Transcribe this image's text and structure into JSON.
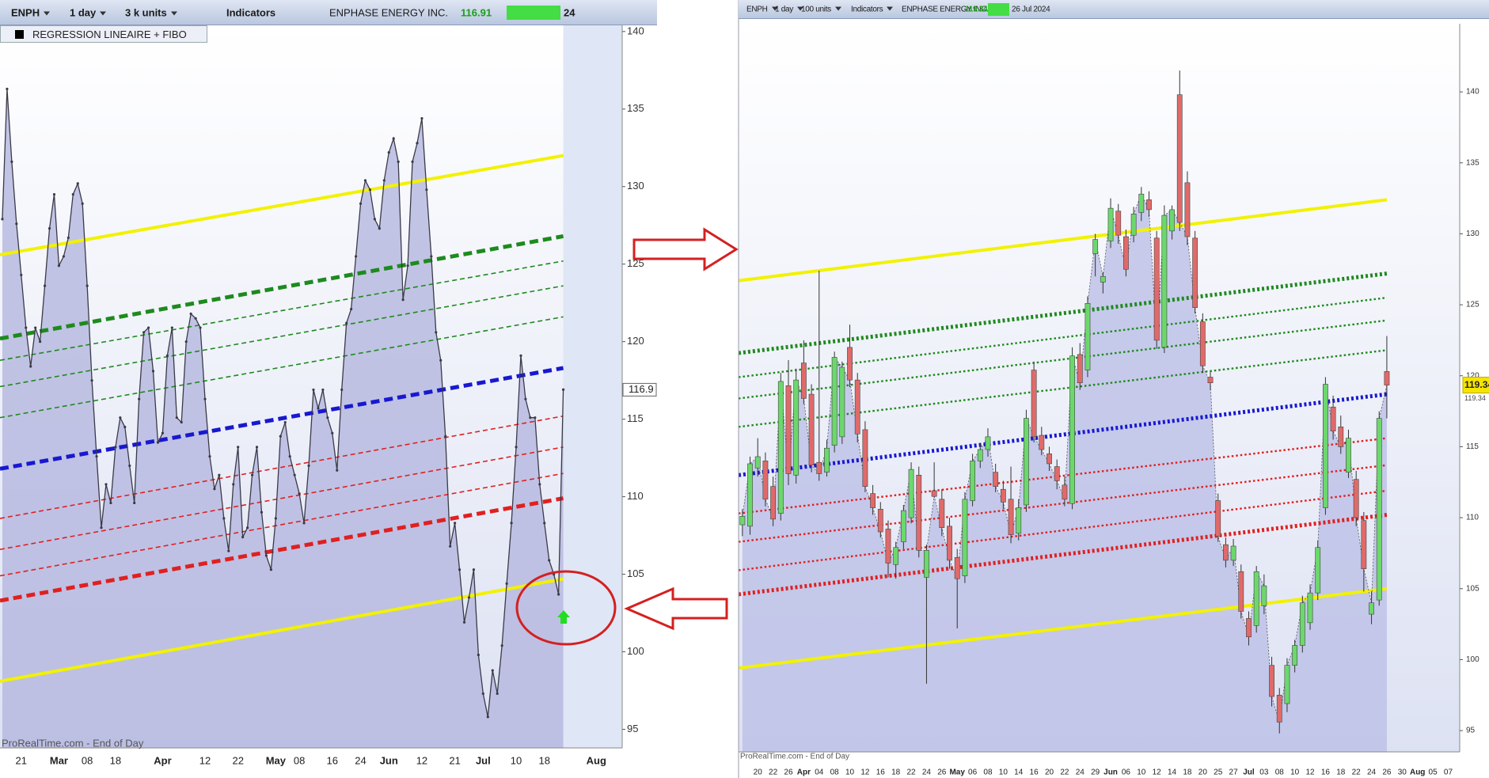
{
  "toolbars": [
    {
      "symbol": "ENPH",
      "period": "1 day",
      "units": "3 k units",
      "indicators": "Indicators",
      "name": "ENPHASE ENERGY INC.",
      "price": "116.91",
      "date": "24"
    },
    {
      "symbol": "ENPH",
      "period": "1 day",
      "units": "100 units",
      "indicators": "Indicators",
      "name": "ENPHASE ENERGY INC.",
      "price": "119.34",
      "date": "26 Jul 2024"
    }
  ],
  "indicator": "REGRESSION LINEAIRE + FIBO",
  "chart_data": [
    {
      "type": "line",
      "watermark": "ProRealTime.com - End of Day",
      "color": "#3a3a48",
      "area_color": "#b4b6df",
      "ylim": [
        93.8,
        140.4
      ],
      "yticks": [
        95,
        100,
        105,
        110,
        115,
        120,
        125,
        130,
        135,
        140
      ],
      "price_marker": 116.9,
      "categories": [
        null,
        null,
        null,
        null,
        "21",
        null,
        null,
        null,
        null,
        null,
        null,
        null,
        "Mar",
        null,
        null,
        null,
        null,
        null,
        "08",
        null,
        null,
        null,
        null,
        null,
        "18",
        null,
        null,
        null,
        null,
        null,
        null,
        null,
        null,
        null,
        "Apr",
        null,
        null,
        null,
        null,
        null,
        null,
        null,
        null,
        "12",
        null,
        null,
        null,
        null,
        null,
        null,
        "22",
        null,
        null,
        null,
        null,
        null,
        null,
        null,
        "May",
        null,
        null,
        null,
        null,
        "08",
        null,
        null,
        null,
        null,
        null,
        null,
        "16",
        null,
        null,
        null,
        null,
        null,
        "24",
        null,
        null,
        null,
        null,
        null,
        "Jun",
        null,
        null,
        null,
        null,
        null,
        null,
        "12",
        null,
        null,
        null,
        null,
        null,
        null,
        "21",
        null,
        null,
        null,
        null,
        null,
        "Jul",
        null,
        null,
        null,
        null,
        null,
        null,
        "10",
        null,
        null,
        null,
        null,
        null,
        "18",
        null,
        null,
        null,
        null,
        null,
        null,
        null,
        null,
        null,
        null,
        "Aug",
        null,
        null,
        null,
        null,
        null
      ],
      "values": [
        127.9,
        136.3,
        131.6,
        127.6,
        124.3,
        120.9,
        118.4,
        120.9,
        120,
        123.6,
        127.3,
        129.5,
        124.9,
        125.5,
        126.7,
        129.5,
        130.2,
        128.9,
        123.6,
        117.5,
        112.6,
        108,
        110.8,
        109.6,
        113.2,
        115.1,
        114.5,
        112,
        109.6,
        116.3,
        120.6,
        120.9,
        118.1,
        113.5,
        114.1,
        119.1,
        120.9,
        115.1,
        114.8,
        120,
        121.8,
        121.5,
        120.9,
        116.3,
        112.6,
        110.5,
        111.4,
        108.6,
        106.5,
        110.8,
        113.2,
        107.4,
        108,
        111.4,
        113.2,
        109,
        106.2,
        105.3,
        108.6,
        113.9,
        114.8,
        112.6,
        111.4,
        110.2,
        108.3,
        112,
        116.9,
        115.7,
        116.9,
        115.1,
        114.1,
        111.7,
        116.9,
        121.2,
        122.1,
        125.5,
        128.9,
        130.4,
        129.8,
        127.9,
        127.3,
        130.4,
        132.2,
        133.1,
        131.6,
        122.7,
        124.9,
        131.6,
        132.8,
        134.4,
        129.8,
        125.5,
        120.6,
        118.8,
        113.9,
        106.8,
        108.3,
        105.3,
        101.9,
        103.5,
        105.3,
        99.8,
        97.3,
        95.8,
        98.8,
        97.3,
        100.4,
        104.4,
        108.3,
        113.2,
        119.1,
        116.3,
        115.1,
        115.1,
        110.8,
        108.3,
        105.9,
        105,
        103.7,
        116.91,
        null,
        null,
        null,
        null,
        null,
        null,
        null,
        null,
        null,
        null,
        null,
        null
      ],
      "overlays": [
        {
          "color": "#f2f200",
          "style": "solid",
          "values": [
            125.6,
            132.0
          ]
        },
        {
          "color": "#1e8a1e",
          "style": "dashed-bold",
          "values": [
            120.2,
            126.8
          ]
        },
        {
          "color": "#1e8a1e",
          "style": "dashed",
          "values": [
            118.8,
            125.2
          ]
        },
        {
          "color": "#1e8a1e",
          "style": "dashed",
          "values": [
            117.1,
            123.6
          ]
        },
        {
          "color": "#1e8a1e",
          "style": "dashed",
          "values": [
            115.1,
            121.6
          ]
        },
        {
          "color": "#1818d0",
          "style": "dashed-bold",
          "values": [
            111.8,
            118.3
          ]
        },
        {
          "color": "#e02020",
          "style": "dashed",
          "values": [
            108.6,
            115.2
          ]
        },
        {
          "color": "#e02020",
          "style": "dashed",
          "values": [
            106.6,
            113.2
          ]
        },
        {
          "color": "#e02020",
          "style": "dashed",
          "values": [
            104.9,
            111.5
          ]
        },
        {
          "color": "#e02020",
          "style": "dashed-bold",
          "values": [
            103.3,
            109.9
          ]
        },
        {
          "color": "#f2f200",
          "style": "solid",
          "values": [
            98.1,
            104.7
          ]
        }
      ]
    },
    {
      "type": "candlestick",
      "watermark": "ProRealTime.com - End of Day",
      "up_color": "#6cd86c",
      "down_color": "#e06a6a",
      "area_color": "#bcbfe6",
      "ylim": [
        93.5,
        144.8
      ],
      "yticks": [
        95,
        100,
        105,
        110,
        115,
        120,
        125,
        130,
        135,
        140
      ],
      "price_marker": 119.34,
      "categories": [
        null,
        null,
        "20",
        null,
        "22",
        null,
        "26",
        null,
        "Apr",
        null,
        "04",
        null,
        "08",
        null,
        "10",
        null,
        "12",
        null,
        "16",
        null,
        "18",
        null,
        "22",
        null,
        "24",
        null,
        "26",
        null,
        "May",
        null,
        "06",
        null,
        "08",
        null,
        "10",
        null,
        "14",
        null,
        "16",
        null,
        "20",
        null,
        "22",
        null,
        "24",
        null,
        "29",
        null,
        "Jun",
        null,
        "06",
        null,
        "10",
        null,
        "12",
        null,
        "14",
        null,
        "18",
        null,
        "20",
        null,
        "25",
        null,
        "27",
        null,
        "Jul",
        null,
        "03",
        null,
        "08",
        null,
        "10",
        null,
        "12",
        null,
        "16",
        null,
        "18",
        null,
        "22",
        null,
        "24",
        null,
        "26",
        null,
        "30",
        null,
        "Aug",
        null,
        "05",
        null,
        "07",
        null
      ],
      "open": [
        109.5,
        109.4,
        113.5,
        114,
        112.2,
        110.3,
        119.3,
        113.0,
        120.9,
        118.7,
        113.9,
        113.2,
        115.1,
        115.7,
        122.0,
        119.7,
        116.2,
        111.7,
        110.6,
        109.2,
        106.7,
        108.3,
        110.0,
        113.0,
        105.8,
        111.9,
        111.3,
        109.4,
        107.2,
        105.9,
        111.2,
        114.0,
        114.8,
        113.2,
        112.0,
        111.3,
        108.9,
        110.9,
        120.4,
        115.8,
        114.5,
        113.6,
        112.3,
        111.0,
        121.5,
        120.4,
        128.6,
        126.6,
        129.5,
        131.6,
        129.8,
        129.9,
        131.5,
        132.4,
        129.7,
        122.0,
        130.2,
        139.8,
        133.6,
        129.7,
        123.8,
        119.9,
        111.2,
        108.1,
        107.0,
        106.2,
        102.9,
        102.4,
        103.8,
        99.6,
        97.5,
        96.9,
        99.6,
        101.0,
        102.6,
        104.7,
        110.7,
        117.8,
        116.4,
        113.2,
        112.7,
        109.8,
        103.2,
        104.2,
        120.3,
        null,
        null,
        null,
        null,
        null,
        null,
        null,
        null,
        null
      ],
      "high": [
        110.6,
        114.3,
        115.6,
        114.6,
        112.9,
        120.2,
        121.1,
        120.5,
        122.5,
        119.4,
        127.4,
        115.5,
        121.7,
        121.0,
        123.6,
        120.2,
        116.8,
        112.3,
        111.1,
        109.8,
        108.3,
        110.9,
        113.9,
        113.6,
        108.1,
        113.9,
        112.0,
        110.0,
        107.8,
        111.8,
        114.5,
        115.2,
        116.3,
        113.8,
        112.6,
        113.6,
        111.3,
        117.6,
        121.0,
        116.4,
        115.0,
        114.1,
        112.9,
        122.0,
        122.3,
        125.6,
        130.0,
        127.3,
        132.5,
        132.1,
        130.3,
        131.9,
        133.3,
        133.0,
        130.2,
        132.0,
        132.0,
        141.5,
        134.4,
        130.2,
        124.4,
        120.3,
        111.7,
        108.6,
        108.5,
        106.7,
        103.4,
        106.6,
        106.0,
        100.2,
        98.0,
        100.1,
        101.4,
        104.5,
        105.3,
        108.4,
        119.9,
        118.6,
        117.2,
        116.2,
        113.3,
        110.4,
        104.8,
        117.5,
        122.8,
        null,
        null,
        null,
        null,
        null,
        null,
        null,
        null,
        null
      ],
      "low": [
        108.7,
        108.8,
        112.9,
        110.8,
        109.4,
        109.8,
        112.3,
        112.4,
        118.0,
        113.2,
        112.6,
        112.9,
        114.6,
        115.2,
        119.2,
        115.3,
        111.8,
        110.2,
        108.6,
        105.8,
        105.7,
        107.8,
        109.6,
        107.2,
        98.3,
        111.4,
        108.7,
        106.4,
        102.2,
        105.4,
        110.8,
        113.5,
        114.3,
        111.8,
        110.6,
        108.2,
        108.4,
        110.4,
        115.3,
        114.4,
        113.3,
        112.0,
        110.8,
        110.6,
        119.0,
        119.9,
        127.0,
        125.8,
        129.0,
        129.3,
        127.0,
        129.4,
        130.9,
        131.2,
        121.9,
        121.6,
        129.6,
        130.2,
        129.2,
        124.4,
        120.2,
        119.0,
        108.3,
        106.5,
        106.6,
        102.9,
        101.0,
        101.9,
        103.2,
        96.7,
        94.8,
        96.3,
        99.1,
        100.5,
        102.1,
        104.2,
        110.2,
        115.5,
        114.5,
        112.8,
        109.4,
        104.8,
        102.5,
        103.8,
        117.0,
        null,
        null,
        null,
        null,
        null,
        null,
        null,
        null,
        null
      ],
      "close": [
        110.1,
        113.8,
        114.3,
        111.3,
        109.9,
        119.6,
        113.1,
        119.7,
        118.4,
        113.7,
        113.1,
        114.9,
        121.3,
        120.6,
        119.7,
        115.9,
        112.2,
        110.7,
        109.0,
        106.8,
        107.9,
        110.5,
        113.4,
        107.7,
        107.7,
        111.5,
        109.3,
        107.0,
        105.7,
        111.3,
        114.0,
        114.8,
        115.7,
        112.2,
        111.1,
        108.8,
        110.7,
        117.0,
        115.7,
        114.8,
        113.8,
        112.6,
        111.3,
        121.4,
        119.5,
        125.1,
        129.6,
        127.0,
        131.8,
        129.9,
        127.5,
        131.4,
        132.8,
        131.7,
        122.5,
        131.3,
        131.7,
        130.8,
        129.8,
        124.8,
        120.7,
        119.5,
        108.7,
        107.0,
        108.0,
        103.4,
        101.6,
        106.2,
        105.2,
        97.4,
        95.6,
        99.6,
        101.0,
        104.0,
        104.7,
        107.9,
        119.4,
        116.1,
        115.0,
        115.6,
        110.0,
        106.4,
        104.0,
        117.0,
        119.34,
        null,
        null,
        null,
        null,
        null,
        null,
        null,
        null,
        null
      ],
      "overlays": [
        {
          "color": "#f2f200",
          "style": "solid",
          "values": [
            126.7,
            132.4
          ]
        },
        {
          "color": "#1e8a1e",
          "style": "dotted-bold",
          "values": [
            121.6,
            127.2
          ]
        },
        {
          "color": "#1e8a1e",
          "style": "dotted",
          "values": [
            119.9,
            125.5
          ]
        },
        {
          "color": "#1e8a1e",
          "style": "dotted",
          "values": [
            118.4,
            123.9
          ]
        },
        {
          "color": "#1e8a1e",
          "style": "dotted",
          "values": [
            116.4,
            121.8
          ]
        },
        {
          "color": "#1818d0",
          "style": "dotted-bold",
          "values": [
            113.0,
            118.7
          ]
        },
        {
          "color": "#e02020",
          "style": "dotted",
          "values": [
            110.3,
            115.6
          ]
        },
        {
          "color": "#e02020",
          "style": "dotted",
          "values": [
            108.3,
            113.7
          ]
        },
        {
          "color": "#e02020",
          "style": "dotted",
          "values": [
            106.3,
            111.9
          ]
        },
        {
          "color": "#e02020",
          "style": "dotted-bold",
          "values": [
            104.6,
            110.2
          ]
        },
        {
          "color": "#f2f200",
          "style": "solid",
          "values": [
            99.4,
            105.0
          ]
        }
      ]
    }
  ]
}
